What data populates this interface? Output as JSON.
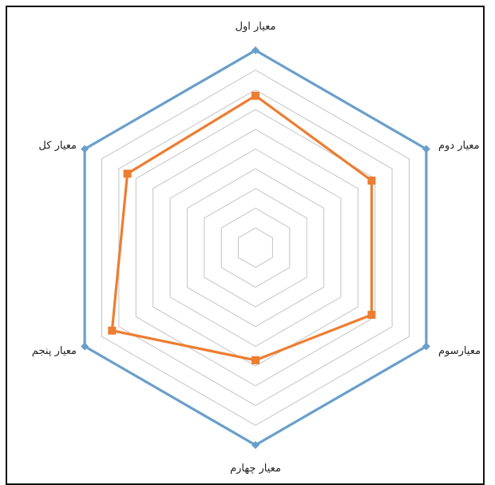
{
  "chart_data": {
    "type": "radar",
    "categories": [
      "معیار اول",
      "معیار دوم",
      "معیارسوم",
      "معیار چهارم",
      "معیار پنجم",
      "معیار کل"
    ],
    "rmax": 10,
    "grid_levels": 10,
    "grid": true,
    "legend": "none",
    "series": [
      {
        "color": "#6a9fcb",
        "marker": "diamond",
        "values": [
          10,
          10,
          10,
          10,
          10,
          10
        ]
      },
      {
        "color": "#ed7d31",
        "marker": "square",
        "values": [
          7.7,
          6.8,
          6.8,
          5.7,
          8.4,
          7.5
        ]
      }
    ]
  }
}
